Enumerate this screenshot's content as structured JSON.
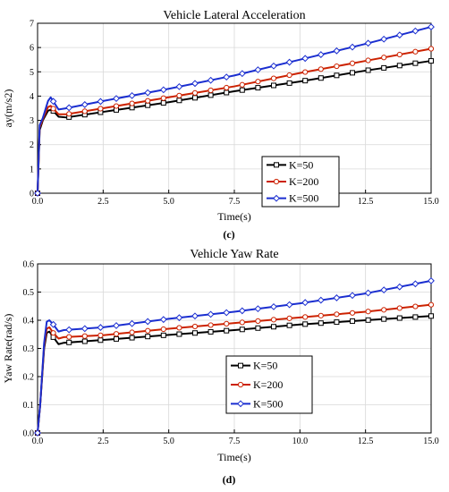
{
  "chart_data": [
    {
      "type": "line",
      "title": "Vehicle Lateral Acceleration",
      "xlabel": "Time(s)",
      "ylabel": "ay(m/s2)",
      "panel_label": "(c)",
      "xlim": [
        0,
        15
      ],
      "ylim": [
        0,
        7
      ],
      "xticks": [
        "0.0",
        "2.5",
        "5.0",
        "7.5",
        "10.0",
        "12.5",
        "15.0"
      ],
      "yticks": [
        "0",
        "1",
        "2",
        "3",
        "4",
        "5",
        "6",
        "7"
      ],
      "grid": true,
      "legend_position": "center-right",
      "series": [
        {
          "name": "K=50",
          "color": "#000000",
          "marker": "square",
          "x": [
            0,
            0.08,
            0.2,
            0.4,
            0.55,
            0.8,
            1.1,
            2.5,
            5,
            7.5,
            10,
            12.5,
            15
          ],
          "y": [
            0,
            2.6,
            3.0,
            3.4,
            3.45,
            3.15,
            3.12,
            3.35,
            3.75,
            4.2,
            4.6,
            5.05,
            5.45
          ]
        },
        {
          "name": "K=200",
          "color": "#cc2200",
          "marker": "circle",
          "x": [
            0,
            0.08,
            0.2,
            0.4,
            0.5,
            0.8,
            1.1,
            2.5,
            5,
            7.5,
            10,
            12.5,
            15
          ],
          "y": [
            0,
            2.7,
            3.05,
            3.55,
            3.6,
            3.25,
            3.25,
            3.5,
            3.95,
            4.4,
            4.95,
            5.45,
            5.95
          ]
        },
        {
          "name": "K=500",
          "color": "#1a2ed0",
          "marker": "diamond",
          "x": [
            0,
            0.08,
            0.2,
            0.4,
            0.5,
            0.8,
            1.1,
            2.5,
            5,
            7.5,
            10,
            12.5,
            15
          ],
          "y": [
            0,
            2.8,
            3.1,
            3.8,
            3.95,
            3.45,
            3.5,
            3.8,
            4.3,
            4.85,
            5.5,
            6.15,
            6.85
          ]
        }
      ]
    },
    {
      "type": "line",
      "title": "Vehicle Yaw Rate",
      "xlabel": "Time(s)",
      "ylabel": "Yaw Rate(rad/s)",
      "panel_label": "(d)",
      "xlim": [
        0,
        15
      ],
      "ylim": [
        0,
        0.6
      ],
      "xticks": [
        "0.0",
        "2.5",
        "5.0",
        "7.5",
        "10.0",
        "12.5",
        "15.0"
      ],
      "yticks": [
        "0.0",
        "0.1",
        "0.2",
        "0.3",
        "0.4",
        "0.5",
        "0.6"
      ],
      "grid": true,
      "legend_position": "center-right",
      "series": [
        {
          "name": "K=50",
          "color": "#000000",
          "marker": "square",
          "x": [
            0,
            0.1,
            0.25,
            0.35,
            0.45,
            0.6,
            0.8,
            1,
            2.5,
            5,
            7.5,
            10,
            12.5,
            15
          ],
          "y": [
            0,
            0.1,
            0.3,
            0.355,
            0.36,
            0.34,
            0.315,
            0.32,
            0.33,
            0.348,
            0.365,
            0.385,
            0.4,
            0.415
          ]
        },
        {
          "name": "K=200",
          "color": "#cc2200",
          "marker": "circle",
          "x": [
            0,
            0.1,
            0.25,
            0.35,
            0.45,
            0.6,
            0.8,
            1,
            2.5,
            5,
            7.5,
            10,
            12.5,
            15
          ],
          "y": [
            0,
            0.1,
            0.31,
            0.37,
            0.375,
            0.355,
            0.335,
            0.34,
            0.347,
            0.37,
            0.39,
            0.41,
            0.43,
            0.455
          ]
        },
        {
          "name": "K=500",
          "color": "#1a2ed0",
          "marker": "diamond",
          "x": [
            0,
            0.1,
            0.25,
            0.35,
            0.45,
            0.6,
            0.8,
            1,
            2.5,
            5,
            7.5,
            10,
            12.5,
            15
          ],
          "y": [
            0,
            0.1,
            0.32,
            0.395,
            0.4,
            0.385,
            0.36,
            0.365,
            0.375,
            0.405,
            0.43,
            0.46,
            0.495,
            0.54
          ]
        }
      ]
    }
  ]
}
